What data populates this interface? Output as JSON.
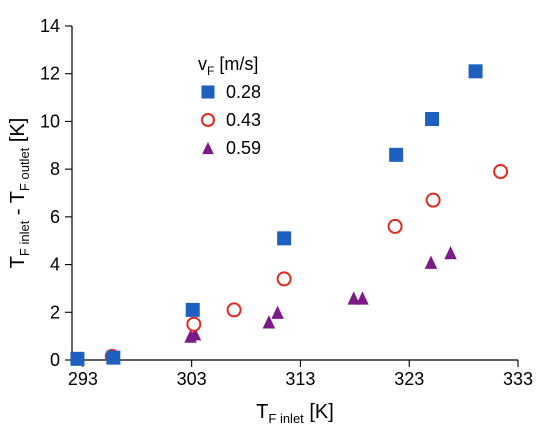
{
  "chart_data": {
    "type": "scatter",
    "xlabel": {
      "main": "T",
      "sub": "F inlet",
      "unit": "[K]"
    },
    "ylabel": {
      "main1": "T",
      "sub1": "F inlet",
      "mid": "- T",
      "sub2": "F outlet",
      "unit": "[K]"
    },
    "xlim": [
      292,
      333
    ],
    "ylim": [
      0,
      14
    ],
    "x_ticks": [
      293,
      303,
      313,
      323,
      333
    ],
    "y_ticks": [
      0,
      2,
      4,
      6,
      8,
      10,
      12,
      14
    ],
    "legend": {
      "title_main": "v",
      "title_sub": "F",
      "title_unit": "[m/s]",
      "position": "upper-left"
    },
    "series": [
      {
        "name": "0.28",
        "marker": "square",
        "color": "#1F5FBF",
        "points": [
          {
            "x": 292.5,
            "y": 0.05
          },
          {
            "x": 295.8,
            "y": 0.1
          },
          {
            "x": 303.1,
            "y": 2.1
          },
          {
            "x": 311.5,
            "y": 5.1
          },
          {
            "x": 321.8,
            "y": 8.6
          },
          {
            "x": 325.1,
            "y": 10.1
          },
          {
            "x": 329.1,
            "y": 12.1
          }
        ]
      },
      {
        "name": "0.43",
        "marker": "open-circle",
        "color": "#E02A1E",
        "points": [
          {
            "x": 295.7,
            "y": 0.15
          },
          {
            "x": 303.2,
            "y": 1.5
          },
          {
            "x": 306.9,
            "y": 2.1
          },
          {
            "x": 311.5,
            "y": 3.4
          },
          {
            "x": 321.7,
            "y": 5.6
          },
          {
            "x": 325.2,
            "y": 6.7
          },
          {
            "x": 331.4,
            "y": 7.9
          }
        ]
      },
      {
        "name": "0.59",
        "marker": "triangle",
        "color": "#7B1A88",
        "points": [
          {
            "x": 295.9,
            "y": 0.1
          },
          {
            "x": 302.9,
            "y": 1.0
          },
          {
            "x": 303.3,
            "y": 1.1
          },
          {
            "x": 310.1,
            "y": 1.6
          },
          {
            "x": 310.9,
            "y": 2.0
          },
          {
            "x": 317.9,
            "y": 2.6
          },
          {
            "x": 318.7,
            "y": 2.6
          },
          {
            "x": 325.0,
            "y": 4.1
          },
          {
            "x": 326.8,
            "y": 4.5
          }
        ]
      }
    ]
  }
}
